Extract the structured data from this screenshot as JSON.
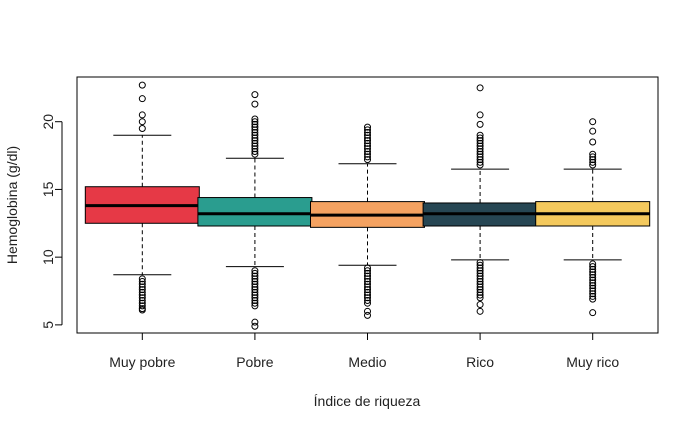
{
  "chart_data": {
    "type": "box",
    "title": "",
    "xlabel": "Índice de riqueza",
    "ylabel": "Hemoglobina (g/dl)",
    "ylim": [
      4.4,
      23.3
    ],
    "yticks": [
      5,
      10,
      15,
      20
    ],
    "categories": [
      "Muy pobre",
      "Pobre",
      "Medio",
      "Rico",
      "Muy rico"
    ],
    "colors": [
      "#E63946",
      "#2A9D8F",
      "#F4A261",
      "#264653",
      "#F4C95D"
    ],
    "boxes": [
      {
        "category": "Muy pobre",
        "whisker_low": 8.7,
        "q1": 12.5,
        "median": 13.8,
        "q3": 15.2,
        "whisker_high": 19.0,
        "outliers": [
          6.1,
          6.2,
          6.4,
          6.6,
          6.8,
          7.0,
          7.2,
          7.4,
          7.6,
          7.8,
          8.0,
          8.2,
          8.4,
          19.5,
          20.0,
          20.5,
          21.7,
          22.7
        ]
      },
      {
        "category": "Pobre",
        "whisker_low": 9.3,
        "q1": 12.3,
        "median": 13.2,
        "q3": 14.4,
        "whisker_high": 17.3,
        "outliers": [
          4.9,
          5.2,
          6.4,
          6.6,
          6.8,
          7.0,
          7.2,
          7.4,
          7.6,
          7.8,
          8.0,
          8.2,
          8.4,
          8.6,
          8.8,
          9.0,
          17.6,
          17.8,
          18.0,
          18.2,
          18.4,
          18.6,
          18.8,
          19.0,
          19.2,
          19.4,
          19.6,
          19.8,
          20.0,
          20.2,
          21.3,
          22.0
        ]
      },
      {
        "category": "Medio",
        "whisker_low": 9.4,
        "q1": 12.2,
        "median": 13.1,
        "q3": 14.1,
        "whisker_high": 16.9,
        "outliers": [
          5.7,
          6.0,
          6.6,
          6.8,
          7.0,
          7.2,
          7.4,
          7.6,
          7.8,
          8.0,
          8.2,
          8.4,
          8.6,
          8.8,
          9.0,
          9.2,
          17.2,
          17.4,
          17.6,
          17.8,
          18.0,
          18.2,
          18.4,
          18.6,
          18.8,
          19.0,
          19.2,
          19.4,
          19.6
        ]
      },
      {
        "category": "Rico",
        "whisker_low": 9.8,
        "q1": 12.3,
        "median": 13.2,
        "q3": 14.0,
        "whisker_high": 16.5,
        "outliers": [
          6.0,
          6.5,
          7.0,
          7.2,
          7.4,
          7.6,
          7.8,
          8.0,
          8.2,
          8.4,
          8.6,
          8.8,
          9.0,
          9.2,
          9.4,
          9.6,
          16.8,
          17.0,
          17.2,
          17.4,
          17.6,
          17.8,
          18.0,
          18.2,
          18.4,
          18.6,
          18.8,
          19.0,
          19.8,
          20.5,
          22.5
        ]
      },
      {
        "category": "Muy rico",
        "whisker_low": 9.8,
        "q1": 12.3,
        "median": 13.2,
        "q3": 14.1,
        "whisker_high": 16.5,
        "outliers": [
          5.9,
          6.9,
          7.1,
          7.3,
          7.5,
          7.7,
          7.9,
          8.1,
          8.3,
          8.5,
          8.7,
          8.9,
          9.1,
          9.3,
          9.5,
          16.8,
          17.0,
          17.2,
          17.4,
          17.6,
          18.5,
          19.3,
          20.0
        ]
      }
    ]
  }
}
